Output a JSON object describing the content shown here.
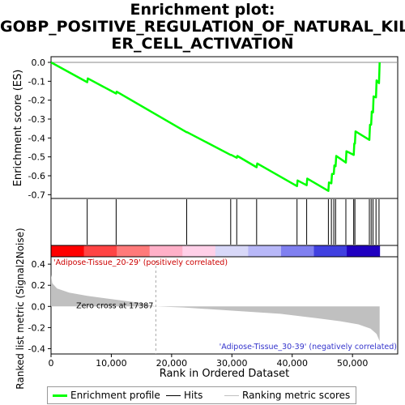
{
  "title_lines": [
    "Enrichment plot:",
    "GOBP_POSITIVE_REGULATION_OF_NATURAL_KILL",
    "ER_CELL_ACTIVATION"
  ],
  "chart_data": {
    "type": "line",
    "xlabel": "Rank in Ordered Dataset",
    "x_ticks": [
      0,
      10000,
      20000,
      30000,
      40000,
      50000
    ],
    "x_tick_labels": [
      "0",
      "10,000",
      "20,000",
      "30,000",
      "40,000",
      "50,000"
    ],
    "xlim": [
      0,
      57500
    ],
    "n_genes": 54500,
    "es_panel": {
      "ylabel": "Enrichment score (ES)",
      "ylim": [
        -0.72,
        0.03
      ],
      "y_ticks": [
        0.0,
        -0.1,
        -0.2,
        -0.3,
        -0.4,
        -0.5,
        -0.6,
        -0.7
      ],
      "y_tick_labels": [
        "0.0",
        "-0.1",
        "-0.2",
        "-0.3",
        "-0.4",
        "-0.5",
        "-0.6",
        "-0.7"
      ],
      "line_color": "#00ff00",
      "points": [
        [
          0,
          0.0
        ],
        [
          6000,
          -0.105
        ],
        [
          6100,
          -0.085
        ],
        [
          10800,
          -0.165
        ],
        [
          10900,
          -0.155
        ],
        [
          22500,
          -0.37
        ],
        [
          22600,
          -0.37
        ],
        [
          29800,
          -0.49
        ],
        [
          29900,
          -0.49
        ],
        [
          30800,
          -0.505
        ],
        [
          30900,
          -0.495
        ],
        [
          34100,
          -0.555
        ],
        [
          34200,
          -0.535
        ],
        [
          40800,
          -0.655
        ],
        [
          40900,
          -0.625
        ],
        [
          42400,
          -0.65
        ],
        [
          42500,
          -0.615
        ],
        [
          46000,
          -0.68
        ],
        [
          46100,
          -0.635
        ],
        [
          46500,
          -0.64
        ],
        [
          46600,
          -0.59
        ],
        [
          46900,
          -0.59
        ],
        [
          47000,
          -0.545
        ],
        [
          47200,
          -0.55
        ],
        [
          47300,
          -0.495
        ],
        [
          48900,
          -0.53
        ],
        [
          49000,
          -0.47
        ],
        [
          50200,
          -0.49
        ],
        [
          50300,
          -0.43
        ],
        [
          50400,
          -0.43
        ],
        [
          50500,
          -0.365
        ],
        [
          52800,
          -0.41
        ],
        [
          52900,
          -0.33
        ],
        [
          53100,
          -0.33
        ],
        [
          53200,
          -0.26
        ],
        [
          53400,
          -0.265
        ],
        [
          53500,
          -0.18
        ],
        [
          53900,
          -0.185
        ],
        [
          54000,
          -0.095
        ],
        [
          54400,
          -0.11
        ],
        [
          54500,
          0.0
        ]
      ]
    },
    "hits": [
      6000,
      10800,
      22500,
      29800,
      30800,
      34100,
      40800,
      42400,
      46000,
      46500,
      46900,
      47200,
      48900,
      50200,
      50400,
      52800,
      53100,
      53400,
      53900,
      54400
    ],
    "ranked_metric": {
      "ylabel": "Ranked list metric (Signal2Noise)",
      "ylim": [
        -0.45,
        0.47
      ],
      "y_ticks": [
        0.4,
        0.2,
        0.0,
        -0.2,
        -0.4
      ],
      "y_tick_labels": [
        "0.4",
        "0.2",
        "0.0",
        "-0.2",
        "-0.4"
      ],
      "fill_color": "#c0c0c0",
      "curve": [
        [
          0,
          0.3
        ],
        [
          200,
          0.22
        ],
        [
          1000,
          0.17
        ],
        [
          3000,
          0.13
        ],
        [
          6000,
          0.1
        ],
        [
          10000,
          0.07
        ],
        [
          14000,
          0.04
        ],
        [
          17387,
          0.0
        ],
        [
          22000,
          -0.01
        ],
        [
          30000,
          -0.04
        ],
        [
          38000,
          -0.07
        ],
        [
          44000,
          -0.11
        ],
        [
          48000,
          -0.14
        ],
        [
          51000,
          -0.17
        ],
        [
          53000,
          -0.21
        ],
        [
          54000,
          -0.26
        ],
        [
          54500,
          -0.33
        ]
      ],
      "zero_cross_rank": 17387,
      "zero_cross_label": "Zero cross at 17387",
      "pos_label": "'Adipose-Tissue_20-29' (positively correlated)",
      "neg_label": "'Adipose-Tissue_30-39' (negatively correlated)"
    },
    "legend": {
      "placement": "bottom",
      "entries": [
        "Enrichment profile",
        "Hits",
        "Ranking metric scores"
      ],
      "colors": [
        "#00ff00",
        "#000000",
        "#c0c0c0"
      ]
    },
    "heatmap_colors": [
      "#ff0000",
      "#ff4444",
      "#ff7a7a",
      "#ffb0c8",
      "#ffd0e8",
      "#d8d8f8",
      "#b8b8f8",
      "#8080f0",
      "#4040e0",
      "#2000c0"
    ]
  }
}
